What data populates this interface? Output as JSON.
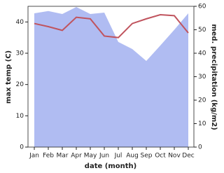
{
  "chart_data": {
    "type": "line-area",
    "x_label": "date (month)",
    "y_label": "max temp (C)",
    "y2_label": "med. precipitation (kg/m2)",
    "categories": [
      "Jan",
      "Feb",
      "Mar",
      "Apr",
      "May",
      "Jun",
      "Jul",
      "Aug",
      "Sep",
      "Oct",
      "Nov",
      "Dec"
    ],
    "series": [
      {
        "name": "max temp",
        "color": "#c0545e",
        "values": [
          39.5,
          38.5,
          37.3,
          41.5,
          41,
          35.5,
          35,
          39.5,
          41,
          42.3,
          42,
          36.5
        ]
      },
      {
        "name": "med. precipitation",
        "color": "#b0bcf2",
        "axis": "y2",
        "values": [
          57,
          58,
          56.7,
          59.7,
          56.7,
          57.3,
          44.8,
          41.8,
          36.7,
          43.3,
          50,
          57
        ]
      }
    ],
    "ylim": [
      0,
      45
    ],
    "yticks": [
      0,
      10,
      20,
      30,
      40
    ],
    "y2lim": [
      0,
      60
    ],
    "y2ticks": [
      0,
      10,
      20,
      30,
      40,
      50,
      60
    ]
  }
}
